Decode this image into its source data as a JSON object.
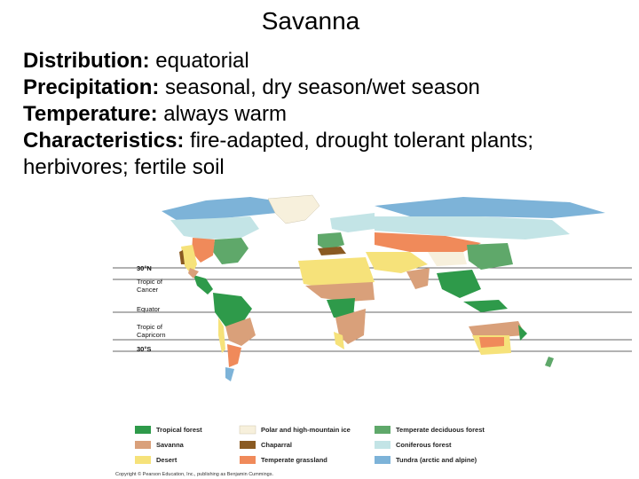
{
  "slide": {
    "title": "Savanna",
    "lines": [
      {
        "label": "Distribution:",
        "text": "  equatorial"
      },
      {
        "label": "Precipitation:",
        "text": "  seasonal, dry season/wet season"
      },
      {
        "label": "Temperature:",
        "text": "  always warm"
      },
      {
        "label": "Characteristics:",
        "text": "  fire-adapted, drought tolerant plants;"
      },
      {
        "label": "",
        "text": "herbivores; fertile soil"
      }
    ]
  },
  "map": {
    "latitudes": {
      "n30": "30°N",
      "tropic_cancer_1": "Tropic of",
      "tropic_cancer_2": "Cancer",
      "equator": "Equator",
      "tropic_capricorn_1": "Tropic of",
      "tropic_capricorn_2": "Capricorn",
      "s30": "30°S"
    },
    "legend": [
      {
        "label": "Tropical forest",
        "color": "#2e9a4a"
      },
      {
        "label": "Savanna",
        "color": "#d9a07a"
      },
      {
        "label": "Desert",
        "color": "#f6e27a"
      },
      {
        "label": "Polar and high-mountain ice",
        "color": "#f7f0dc"
      },
      {
        "label": "Chaparral",
        "color": "#8a5a22"
      },
      {
        "label": "Temperate grassland",
        "color": "#f08a5a"
      },
      {
        "label": "Temperate deciduous forest",
        "color": "#5fa86a"
      },
      {
        "label": "Coniferous forest",
        "color": "#c3e4e6"
      },
      {
        "label": "Tundra (arctic and alpine)",
        "color": "#7db3d8"
      }
    ],
    "credit": "Copyright © Pearson Education, Inc., publishing as Benjamin Cummings."
  },
  "colors": {
    "ocean": "#ffffff",
    "tropical": "#2e9a4a",
    "savanna": "#d9a07a",
    "desert": "#f6e27a",
    "ice": "#f7f0dc",
    "chaparral": "#8a5a22",
    "grassland": "#f08a5a",
    "deciduous": "#5fa86a",
    "coniferous": "#c3e4e6",
    "tundra": "#7db3d8"
  }
}
